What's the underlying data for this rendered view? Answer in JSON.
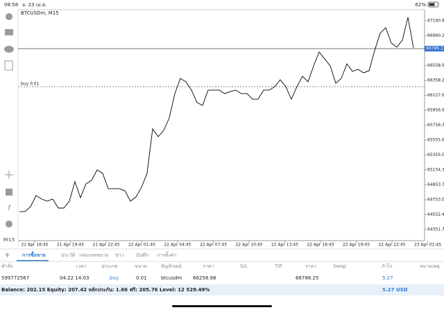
{
  "status_bar": {
    "time": "08:58",
    "date": "อ. 23 เม.ย.",
    "battery": "62%"
  },
  "chart": {
    "type": "line",
    "title": "BTCUSDm, M15",
    "color": "#000000",
    "x_labels": [
      "21 Apr 16:45",
      "21 Apr 19:45",
      "21 Apr 22:45",
      "22 Apr 01:45",
      "22 Apr 04:45",
      "22 Apr 07:45",
      "22 Apr 10:45",
      "22 Apr 13:45",
      "22 Apr 16:45",
      "22 Apr 19:45",
      "22 Apr 22:45",
      "23 Apr 01:45"
    ],
    "values": [
      64594,
      64594,
      64660,
      64809,
      64762,
      64734,
      64762,
      64641,
      64641,
      64734,
      64996,
      64781,
      64968,
      65014,
      65154,
      65108,
      64902,
      64902,
      64902,
      64874,
      64734,
      64790,
      64921,
      65108,
      65705,
      65602,
      65686,
      65854,
      66181,
      66386,
      66340,
      66228,
      66060,
      66022,
      66228,
      66228,
      66228,
      66181,
      66209,
      66228,
      66181,
      66181,
      66106,
      66106,
      66228,
      66228,
      66274,
      66368,
      66274,
      66106,
      66274,
      66414,
      66340,
      66554,
      66741,
      66648,
      66554,
      66321,
      66386,
      66582,
      66480,
      66508,
      66461,
      66489,
      66760,
      66993,
      67068,
      66862,
      66806,
      66900,
      67208,
      66797
    ],
    "ylim": [
      64109,
      67310
    ],
    "yticks": [
      67160.85,
      {
        "value": 66960.2,
        "label": "66960.20"
      },
      {
        "value": 66558.9,
        "label": "66558.90"
      },
      66358.25,
      {
        "value": 66157.6,
        "label": "66157.60"
      },
      65956.95,
      {
        "value": 65756.3,
        "label": "65756.30"
      },
      65555.65,
      {
        "value": 65355,
        "label": "65355.00"
      },
      65154.35,
      {
        "value": 64953.7,
        "label": "64953.70"
      },
      64753.05,
      {
        "value": 64552.4,
        "label": "64552.40"
      },
      64351.75
    ],
    "current_price": 66786.23,
    "order_line": {
      "label": "buy 0.01",
      "value": 66274
    }
  },
  "toolbar": {
    "timeframe": "M15"
  },
  "tabs": [
    "การซื้อขาย",
    "ประวัติ",
    "กล่องจดหมาย",
    "ข่าว",
    "บันทึก",
    "การตั้งค่า"
  ],
  "table": {
    "headers": [
      "คำสั่ง",
      "เวลา",
      "ประเภท",
      "ขนาด",
      "สัญลักษณ์",
      "ราคา",
      "S/L",
      "T/P",
      "ราคา",
      "Swap",
      "กำไร",
      "หมายเหตุ"
    ],
    "row": {
      "order": "599772567",
      "time": "04.22 14:03",
      "type": "buy",
      "volume": "0.01",
      "symbol": "btcusdm",
      "open_price": "66258.98",
      "price": "66786.25",
      "profit": "5.27"
    }
  },
  "footer": {
    "summary": "Balance: 202.15 Equity: 207.42 หลักประกัน: 1.66 ฟรี: 205.76 Level: 12 529.49%",
    "profit": "5.27",
    "currency": "USD"
  }
}
